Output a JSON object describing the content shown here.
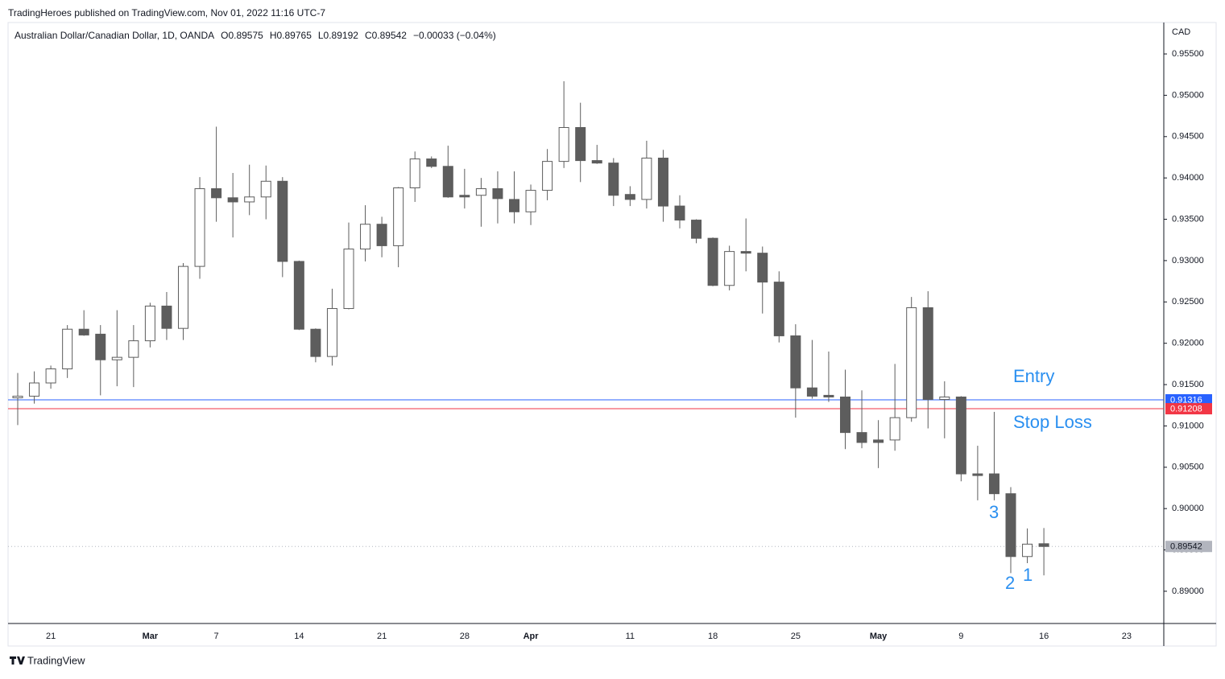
{
  "header": "TradingHeroes published on TradingView.com, Nov 01, 2022 11:16 UTC-7",
  "footer": "TradingView",
  "chart_data": {
    "type": "candlestick",
    "title": "Australian Dollar/Canadian Dollar, 1D, OANDA",
    "legend_items": [
      "O0.89575",
      "H0.89765",
      "L0.89192",
      "C0.89542",
      "−0.00033 (−0.04%)"
    ],
    "currency": "CAD",
    "categories": [
      null,
      null,
      "21",
      null,
      null,
      null,
      null,
      null,
      "Mar",
      null,
      null,
      null,
      "7",
      null,
      null,
      null,
      null,
      "14",
      null,
      null,
      null,
      null,
      "21",
      null,
      null,
      null,
      null,
      "28",
      null,
      null,
      null,
      "Apr",
      null,
      null,
      null,
      null,
      null,
      "11",
      null,
      null,
      null,
      null,
      "18",
      null,
      null,
      null,
      null,
      "25",
      null,
      null,
      null,
      null,
      "May",
      null,
      null,
      null,
      null,
      "9",
      null,
      null,
      null,
      null,
      "16",
      null,
      null,
      null,
      null,
      "23"
    ],
    "open": [
      0.9134,
      0.9136,
      0.9152,
      0.9169,
      0.9217,
      0.9211,
      0.918,
      0.9183,
      0.9203,
      0.9245,
      0.9218,
      0.9293,
      0.9387,
      0.9376,
      0.9371,
      0.9377,
      0.9396,
      0.9299,
      0.9217,
      0.9184,
      0.9242,
      0.9314,
      0.9344,
      0.9318,
      0.9388,
      0.9423,
      0.9414,
      0.9379,
      0.9379,
      0.9387,
      0.9374,
      0.9359,
      0.9385,
      0.942,
      0.9461,
      0.9421,
      0.9418,
      0.938,
      0.9374,
      0.9424,
      0.9366,
      0.9349,
      0.9327,
      0.927,
      0.9311,
      0.9309,
      0.9274,
      0.9209,
      0.9146,
      0.9137,
      0.9135,
      0.9092,
      0.9083,
      0.9083,
      0.911,
      0.9243,
      0.9132,
      0.9135,
      0.9042,
      0.9042,
      0.9018,
      0.8942,
      0.89575,
      null,
      null,
      null,
      null,
      null
    ],
    "high": [
      0.9164,
      0.9166,
      0.9173,
      0.9222,
      0.924,
      0.9222,
      0.924,
      0.9222,
      0.9249,
      0.9262,
      0.9297,
      0.9401,
      0.9462,
      0.9406,
      0.9416,
      0.9415,
      0.9401,
      0.93,
      0.9218,
      0.9266,
      0.9346,
      0.9367,
      0.9353,
      0.9389,
      0.9432,
      0.9426,
      0.9439,
      0.9411,
      0.94,
      0.9408,
      0.9408,
      0.9392,
      0.9435,
      0.9517,
      0.9491,
      0.944,
      0.9424,
      0.939,
      0.9445,
      0.9434,
      0.9379,
      0.935,
      0.9328,
      0.9318,
      0.9351,
      0.9317,
      0.9287,
      0.9223,
      0.9204,
      0.919,
      0.9168,
      0.9143,
      0.9107,
      0.9175,
      0.9256,
      0.9263,
      0.9154,
      0.9136,
      0.9076,
      0.9117,
      0.9026,
      0.8976,
      0.89765,
      null,
      null,
      null,
      null,
      null
    ],
    "low": [
      0.9101,
      0.9127,
      0.9145,
      0.9158,
      0.9209,
      0.9137,
      0.9148,
      0.9147,
      0.9195,
      0.9204,
      0.9204,
      0.9278,
      0.9347,
      0.9328,
      0.9355,
      0.935,
      0.928,
      0.9216,
      0.9177,
      0.9173,
      0.9241,
      0.9299,
      0.9304,
      0.9292,
      0.9371,
      0.9412,
      0.9376,
      0.9363,
      0.9341,
      0.9345,
      0.9345,
      0.9343,
      0.9373,
      0.9412,
      0.9395,
      0.9417,
      0.9366,
      0.9366,
      0.9363,
      0.9347,
      0.9339,
      0.9321,
      0.9269,
      0.9264,
      0.9287,
      0.9236,
      0.9201,
      0.911,
      0.9133,
      0.9129,
      0.9072,
      0.9073,
      0.9049,
      0.907,
      0.9105,
      0.9097,
      0.9085,
      0.9033,
      0.901,
      0.901,
      0.8922,
      0.8934,
      0.89192,
      null,
      null,
      null,
      null,
      null
    ],
    "close": [
      0.9136,
      0.9152,
      0.9169,
      0.9217,
      0.921,
      0.918,
      0.9183,
      0.9203,
      0.9245,
      0.9218,
      0.9293,
      0.9387,
      0.9376,
      0.9371,
      0.9377,
      0.9396,
      0.9299,
      0.9217,
      0.9184,
      0.9242,
      0.9314,
      0.9344,
      0.9318,
      0.9388,
      0.9423,
      0.9414,
      0.9377,
      0.9377,
      0.9387,
      0.9375,
      0.9359,
      0.9385,
      0.942,
      0.9461,
      0.9421,
      0.9418,
      0.9379,
      0.9374,
      0.9424,
      0.9366,
      0.9349,
      0.9327,
      0.927,
      0.9311,
      0.9309,
      0.9274,
      0.9209,
      0.9146,
      0.9136,
      0.9135,
      0.9092,
      0.908,
      0.908,
      0.911,
      0.9243,
      0.9132,
      0.9135,
      0.9042,
      0.904,
      0.9018,
      0.8942,
      0.8957,
      0.89542,
      null,
      null,
      null,
      null,
      null
    ],
    "ylim": [
      0.8861,
      0.9588
    ],
    "yticks": [
      {
        "value": 0.955,
        "label": "0.95500"
      },
      {
        "value": 0.95,
        "label": "0.95000"
      },
      {
        "value": 0.945,
        "label": "0.94500"
      },
      {
        "value": 0.94,
        "label": "0.94000"
      },
      {
        "value": 0.935,
        "label": "0.93500"
      },
      {
        "value": 0.93,
        "label": "0.93000"
      },
      {
        "value": 0.925,
        "label": "0.92500"
      },
      {
        "value": 0.92,
        "label": "0.92000"
      },
      {
        "value": 0.915,
        "label": "0.91500"
      },
      {
        "value": 0.91,
        "label": "0.91000"
      },
      {
        "value": 0.905,
        "label": "0.90500"
      },
      {
        "value": 0.9,
        "label": "0.90000"
      },
      {
        "value": 0.895,
        "label": "0.89500"
      },
      {
        "value": 0.89,
        "label": "0.89000"
      }
    ],
    "up_color": "#ffffff",
    "down_color": "#5d5d5d",
    "wick_color": "#5d5d5d",
    "hlines": [
      {
        "value": 0.91316,
        "color": "#2962ff"
      },
      {
        "value": 0.91208,
        "color": "#f23645"
      },
      {
        "value": 0.89542,
        "color": "#b2b5be"
      }
    ],
    "annotations": [
      "Entry",
      "Stop Loss",
      "3",
      "2",
      "1"
    ],
    "annotation_color": "#2a8ff0"
  }
}
